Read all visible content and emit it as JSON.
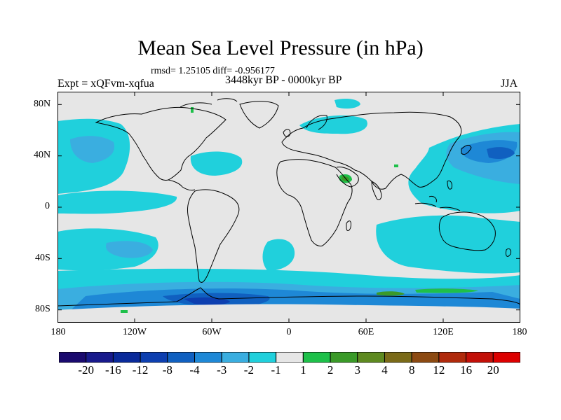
{
  "title": "Mean Sea Level Pressure (in hPa)",
  "stats": "rmsd= 1.25105 diff= -0.956177",
  "experiment": "Expt = xQFvm-xqfua",
  "period": "3448kyr BP - 0000kyr BP",
  "season": "JJA",
  "axes": {
    "lat_labels": [
      "80N",
      "40N",
      "0",
      "40S",
      "80S"
    ],
    "lon_labels": [
      "180",
      "120W",
      "60W",
      "0",
      "60E",
      "120E",
      "180"
    ]
  },
  "colorbar": {
    "colors": [
      "#1a0a6e",
      "#181a8c",
      "#0a2a9a",
      "#0d3fb0",
      "#1060c0",
      "#1e88d6",
      "#3aaee0",
      "#20d0dc",
      "#e6e6e6",
      "#1ec04a",
      "#3a9a28",
      "#5e8a20",
      "#7a6a18",
      "#8c4a12",
      "#b02a0c",
      "#c21008",
      "#dc0000"
    ],
    "labels": [
      "-20",
      "-16",
      "-12",
      "-8",
      "-4",
      "-3",
      "-2",
      "-1",
      "1",
      "2",
      "3",
      "4",
      "8",
      "12",
      "16",
      "20"
    ]
  },
  "colors": {
    "ocean_bg": "#e6e6e6",
    "cyan": "#20d0dc",
    "light_blue": "#3aaee0",
    "mid_blue": "#1e88d6",
    "blue": "#1060c0",
    "deep_blue": "#0d3fb0",
    "green": "#1ec04a",
    "olive": "#3a9a28",
    "coast": "#000000"
  }
}
